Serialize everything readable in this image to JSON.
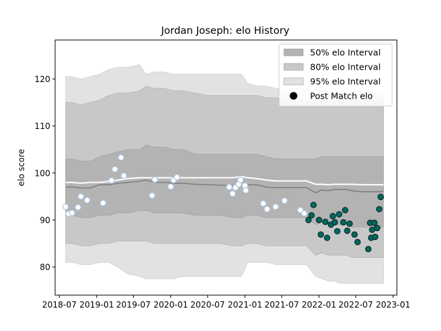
{
  "chart_data": {
    "type": "area",
    "title": "Jordan Joseph: elo History",
    "xlabel": "",
    "ylabel": "elo score",
    "x_ticks": [
      "2018-07",
      "2019-01",
      "2019-07",
      "2020-01",
      "2020-07",
      "2021-01",
      "2021-07",
      "2022-01",
      "2022-07",
      "2023-01"
    ],
    "y_ticks": [
      80,
      90,
      100,
      110,
      120
    ],
    "xlim": [
      "2018-06-10",
      "2023-01-20"
    ],
    "ylim": [
      74,
      128.3
    ],
    "grid": false,
    "legend_position": "top-right",
    "legend": [
      {
        "label": "50% elo Interval",
        "kind": "band",
        "color": "#b3b3b3"
      },
      {
        "label": "80% elo Interval",
        "kind": "band",
        "color": "#c8c8c8"
      },
      {
        "label": "95% elo Interval",
        "kind": "band",
        "color": "#e2e2e2"
      },
      {
        "label": "Post Match elo",
        "kind": "marker",
        "color": "#000000"
      }
    ],
    "colors": {
      "band_95": "#e2e2e2",
      "band_80": "#c8c8c8",
      "band_50": "#b3b3b3",
      "mean_line": "#808080",
      "upper_line": "#ffffff",
      "old_point_fill": "#ffffff",
      "old_point_edge": "#b0c8e8",
      "recent_point_fill": "#006a5e",
      "recent_point_edge": "#0a2a2a"
    },
    "bands": {
      "x": [
        "2018-08-01",
        "2018-09-01",
        "2018-10-15",
        "2018-12-01",
        "2019-01-15",
        "2019-03-01",
        "2019-04-15",
        "2019-06-01",
        "2019-08-01",
        "2019-09-01",
        "2019-10-15",
        "2019-12-01",
        "2020-01-15",
        "2020-03-01",
        "2020-05-01",
        "2020-07-01",
        "2020-09-01",
        "2020-11-01",
        "2020-12-15",
        "2021-01-15",
        "2021-03-01",
        "2021-04-15",
        "2021-06-01",
        "2021-08-01",
        "2021-09-15",
        "2021-11-01",
        "2021-12-15",
        "2022-01-15",
        "2022-02-15",
        "2022-03-15",
        "2022-04-15",
        "2022-05-15",
        "2022-06-15",
        "2022-08-01",
        "2022-09-01",
        "2022-10-01",
        "2022-11-01",
        "2022-11-15"
      ],
      "mean": [
        97,
        97,
        96.8,
        96.8,
        97.5,
        97.5,
        97.8,
        98,
        98.2,
        98.5,
        98,
        98,
        97.8,
        97.8,
        97.6,
        97.5,
        97.4,
        97.3,
        97.4,
        97.5,
        97.5,
        97,
        96.9,
        96.9,
        96.9,
        96.9,
        95.8,
        96.4,
        96.2,
        96.5,
        96.5,
        96.5,
        96.2,
        96,
        96,
        96,
        96,
        96.2
      ],
      "p50": [
        [
          91,
          103
        ],
        [
          91,
          103
        ],
        [
          90.5,
          102.5
        ],
        [
          90.5,
          102.5
        ],
        [
          91,
          103.5
        ],
        [
          91,
          104
        ],
        [
          91.5,
          104.5
        ],
        [
          91.5,
          105
        ],
        [
          92,
          105
        ],
        [
          92,
          106
        ],
        [
          91.5,
          105.5
        ],
        [
          91.5,
          105.5
        ],
        [
          91.5,
          105
        ],
        [
          91.5,
          105
        ],
        [
          91,
          104
        ],
        [
          91,
          104
        ],
        [
          91,
          104
        ],
        [
          90.5,
          104
        ],
        [
          90.5,
          104
        ],
        [
          91,
          104
        ],
        [
          91,
          104
        ],
        [
          90.5,
          103.5
        ],
        [
          90.5,
          103
        ],
        [
          90.5,
          103
        ],
        [
          90.5,
          103
        ],
        [
          90.5,
          103
        ],
        [
          89,
          103
        ],
        [
          89.5,
          103.5
        ],
        [
          89,
          103.5
        ],
        [
          89,
          103.5
        ],
        [
          89,
          103.5
        ],
        [
          89,
          103.5
        ],
        [
          88.5,
          103.5
        ],
        [
          88.5,
          103.5
        ],
        [
          88.5,
          103.5
        ],
        [
          88.5,
          103.5
        ],
        [
          88.5,
          103.5
        ],
        [
          88.5,
          103.5
        ]
      ],
      "p80": [
        [
          85,
          115
        ],
        [
          85,
          115
        ],
        [
          84.5,
          114.5
        ],
        [
          84.5,
          115
        ],
        [
          85,
          115.5
        ],
        [
          85,
          116.5
        ],
        [
          85.5,
          117
        ],
        [
          85.5,
          117
        ],
        [
          85.5,
          117.5
        ],
        [
          85.5,
          118.5
        ],
        [
          85,
          118
        ],
        [
          85,
          118
        ],
        [
          85,
          117.5
        ],
        [
          85,
          117.5
        ],
        [
          85,
          117
        ],
        [
          85,
          116.5
        ],
        [
          85,
          116.5
        ],
        [
          84.5,
          116.5
        ],
        [
          84.5,
          116.5
        ],
        [
          85,
          116.5
        ],
        [
          85,
          116.5
        ],
        [
          84.5,
          116
        ],
        [
          84.5,
          116
        ],
        [
          84.5,
          115.5
        ],
        [
          84.5,
          115.5
        ],
        [
          84.5,
          115.5
        ],
        [
          82.5,
          115
        ],
        [
          83,
          115.5
        ],
        [
          82.5,
          115.5
        ],
        [
          82.5,
          115.5
        ],
        [
          82.5,
          115.5
        ],
        [
          82.5,
          115.5
        ],
        [
          82,
          115.5
        ],
        [
          82,
          115.5
        ],
        [
          82,
          115.5
        ],
        [
          82,
          115.5
        ],
        [
          82,
          115.5
        ],
        [
          82,
          115.5
        ]
      ],
      "p95": [
        [
          81,
          120.5
        ],
        [
          81,
          120.5
        ],
        [
          80.5,
          120
        ],
        [
          80.5,
          120.5
        ],
        [
          81,
          121
        ],
        [
          81,
          122
        ],
        [
          80,
          122.5
        ],
        [
          78.5,
          122.5
        ],
        [
          78,
          123
        ],
        [
          77.5,
          121
        ],
        [
          77.5,
          121.5
        ],
        [
          77.5,
          121.5
        ],
        [
          77.5,
          121
        ],
        [
          78,
          121
        ],
        [
          78,
          121
        ],
        [
          78,
          121
        ],
        [
          78,
          121
        ],
        [
          78,
          121
        ],
        [
          78,
          121
        ],
        [
          81,
          119
        ],
        [
          81,
          118.5
        ],
        [
          81,
          118.5
        ],
        [
          80.5,
          118
        ],
        [
          80.5,
          117.5
        ],
        [
          80.5,
          118
        ],
        [
          80.5,
          118
        ],
        [
          78,
          117
        ],
        [
          77.5,
          117.5
        ],
        [
          77,
          117
        ],
        [
          77,
          117
        ],
        [
          76.5,
          117
        ],
        [
          76.5,
          117
        ],
        [
          76.5,
          117
        ],
        [
          76.5,
          117
        ],
        [
          76.5,
          117
        ],
        [
          76.5,
          117
        ],
        [
          76.5,
          117
        ],
        [
          76.5,
          117
        ]
      ],
      "upper_line": [
        98,
        98,
        97.8,
        98,
        98,
        98.2,
        98.5,
        98.8,
        99,
        99,
        99,
        99,
        99,
        99,
        99,
        99,
        99,
        99,
        99.2,
        99,
        98.8,
        98.5,
        98.3,
        98.3,
        98.3,
        98.3,
        97.6,
        97.6,
        97.5,
        97.6,
        97.6,
        97.6,
        97.6,
        97.5,
        97.5,
        97.5,
        97.5,
        97.5
      ]
    },
    "points": [
      {
        "x": "2018-08-01",
        "y": 92.8,
        "recent": false
      },
      {
        "x": "2018-08-15",
        "y": 91.3,
        "recent": false
      },
      {
        "x": "2018-09-01",
        "y": 91.5,
        "recent": false
      },
      {
        "x": "2018-10-01",
        "y": 92.7,
        "recent": false
      },
      {
        "x": "2018-10-15",
        "y": 95,
        "recent": false
      },
      {
        "x": "2018-11-15",
        "y": 94.2,
        "recent": false
      },
      {
        "x": "2019-02-01",
        "y": 93.6,
        "recent": false
      },
      {
        "x": "2019-03-15",
        "y": 98.4,
        "recent": false
      },
      {
        "x": "2019-04-01",
        "y": 100.8,
        "recent": false
      },
      {
        "x": "2019-05-01",
        "y": 103.3,
        "recent": false
      },
      {
        "x": "2019-05-15",
        "y": 99.4,
        "recent": false
      },
      {
        "x": "2019-10-01",
        "y": 95.2,
        "recent": false
      },
      {
        "x": "2019-10-15",
        "y": 98.6,
        "recent": false
      },
      {
        "x": "2020-01-01",
        "y": 97.1,
        "recent": false
      },
      {
        "x": "2020-01-15",
        "y": 98.5,
        "recent": false
      },
      {
        "x": "2020-02-01",
        "y": 99.1,
        "recent": false
      },
      {
        "x": "2020-10-15",
        "y": 97,
        "recent": false
      },
      {
        "x": "2020-11-01",
        "y": 95.6,
        "recent": false
      },
      {
        "x": "2020-11-15",
        "y": 96.9,
        "recent": false
      },
      {
        "x": "2020-12-01",
        "y": 97.6,
        "recent": false
      },
      {
        "x": "2020-12-10",
        "y": 98.5,
        "recent": false
      },
      {
        "x": "2021-01-01",
        "y": 97.3,
        "recent": false
      },
      {
        "x": "2021-01-05",
        "y": 96.3,
        "recent": false
      },
      {
        "x": "2021-04-01",
        "y": 93.5,
        "recent": false
      },
      {
        "x": "2021-04-20",
        "y": 92.3,
        "recent": false
      },
      {
        "x": "2021-06-01",
        "y": 92.8,
        "recent": false
      },
      {
        "x": "2021-07-15",
        "y": 94.1,
        "recent": false
      },
      {
        "x": "2021-10-01",
        "y": 92.1,
        "recent": false
      },
      {
        "x": "2021-10-20",
        "y": 91.4,
        "recent": false
      },
      {
        "x": "2021-11-10",
        "y": 90,
        "recent": true
      },
      {
        "x": "2021-11-25",
        "y": 91,
        "recent": true
      },
      {
        "x": "2021-12-05",
        "y": 93.2,
        "recent": true
      },
      {
        "x": "2022-01-01",
        "y": 90,
        "recent": true
      },
      {
        "x": "2022-01-10",
        "y": 86.9,
        "recent": true
      },
      {
        "x": "2022-02-01",
        "y": 89.6,
        "recent": true
      },
      {
        "x": "2022-02-10",
        "y": 86.2,
        "recent": true
      },
      {
        "x": "2022-03-01",
        "y": 89,
        "recent": true
      },
      {
        "x": "2022-03-10",
        "y": 90.8,
        "recent": true
      },
      {
        "x": "2022-03-20",
        "y": 89.5,
        "recent": true
      },
      {
        "x": "2022-04-01",
        "y": 87.6,
        "recent": true
      },
      {
        "x": "2022-04-10",
        "y": 91.2,
        "recent": true
      },
      {
        "x": "2022-05-01",
        "y": 89.5,
        "recent": true
      },
      {
        "x": "2022-05-10",
        "y": 92.1,
        "recent": true
      },
      {
        "x": "2022-05-20",
        "y": 87.7,
        "recent": true
      },
      {
        "x": "2022-06-01",
        "y": 89.2,
        "recent": true
      },
      {
        "x": "2022-06-25",
        "y": 86.9,
        "recent": true
      },
      {
        "x": "2022-07-10",
        "y": 85.3,
        "recent": true
      },
      {
        "x": "2022-09-01",
        "y": 83.8,
        "recent": true
      },
      {
        "x": "2022-09-10",
        "y": 89.4,
        "recent": true
      },
      {
        "x": "2022-09-15",
        "y": 86.2,
        "recent": true
      },
      {
        "x": "2022-09-20",
        "y": 87.9,
        "recent": true
      },
      {
        "x": "2022-10-01",
        "y": 89.4,
        "recent": true
      },
      {
        "x": "2022-10-05",
        "y": 86.4,
        "recent": true
      },
      {
        "x": "2022-10-15",
        "y": 88.3,
        "recent": true
      },
      {
        "x": "2022-10-25",
        "y": 92.3,
        "recent": true
      },
      {
        "x": "2022-11-01",
        "y": 94.9,
        "recent": true
      }
    ]
  }
}
